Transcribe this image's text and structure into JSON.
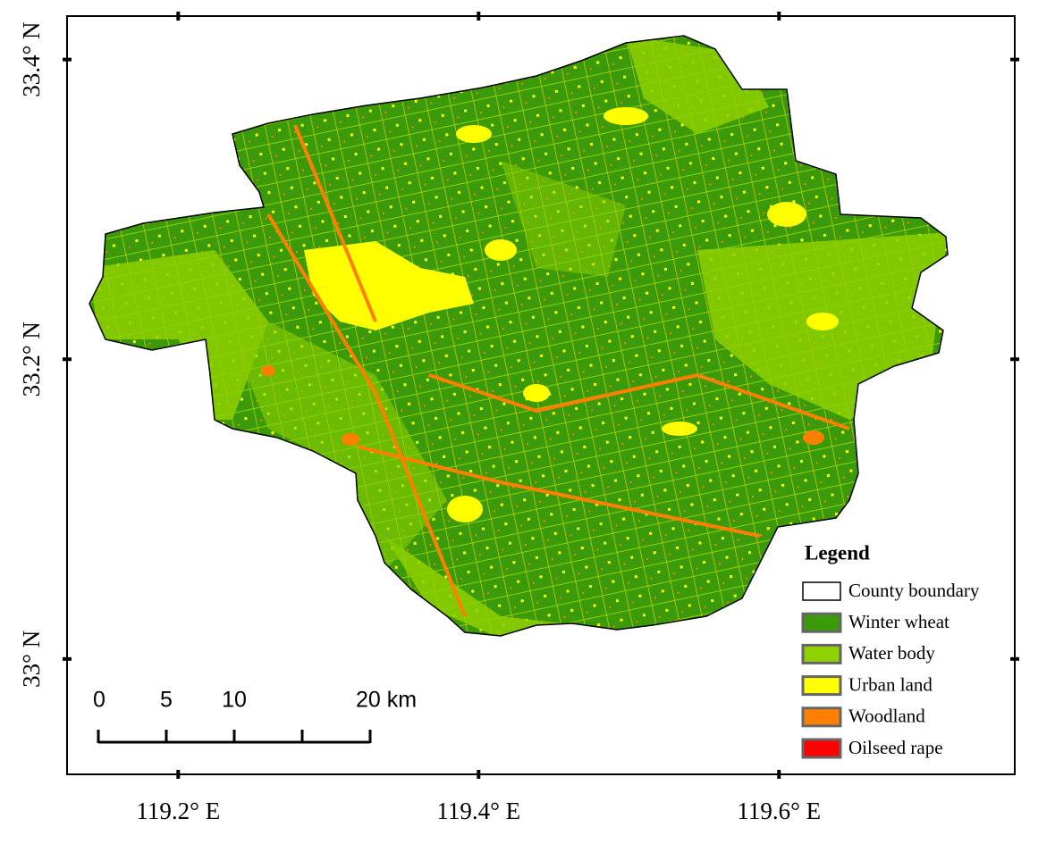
{
  "map": {
    "lon_range": [
      119.126,
      119.757
    ],
    "lat_range": [
      32.923,
      33.429
    ],
    "x_ticks": [
      {
        "value": 119.2,
        "label": "119.2° E"
      },
      {
        "value": 119.4,
        "label": "119.4° E"
      },
      {
        "value": 119.6,
        "label": "119.6° E"
      }
    ],
    "y_ticks": [
      {
        "value": 33.4,
        "label": "33.4° N"
      },
      {
        "value": 33.2,
        "label": "33.2° N"
      },
      {
        "value": 33.0,
        "label": "33° N"
      }
    ],
    "legend": {
      "title": "Legend",
      "items": [
        {
          "name": "County boundary",
          "color": "#ffffff"
        },
        {
          "name": "Winter wheat",
          "color": "#3a9a0a"
        },
        {
          "name": "Water body",
          "color": "#8fd000"
        },
        {
          "name": "Urban land",
          "color": "#ffff00"
        },
        {
          "name": "Woodland",
          "color": "#ff8000"
        },
        {
          "name": "Oilseed rape",
          "color": "#ff0000"
        }
      ]
    },
    "scale_bar": {
      "ticks": [
        0,
        5,
        10,
        15,
        20
      ],
      "labels": [
        "0",
        "5",
        "10",
        null,
        "20 km"
      ]
    }
  }
}
